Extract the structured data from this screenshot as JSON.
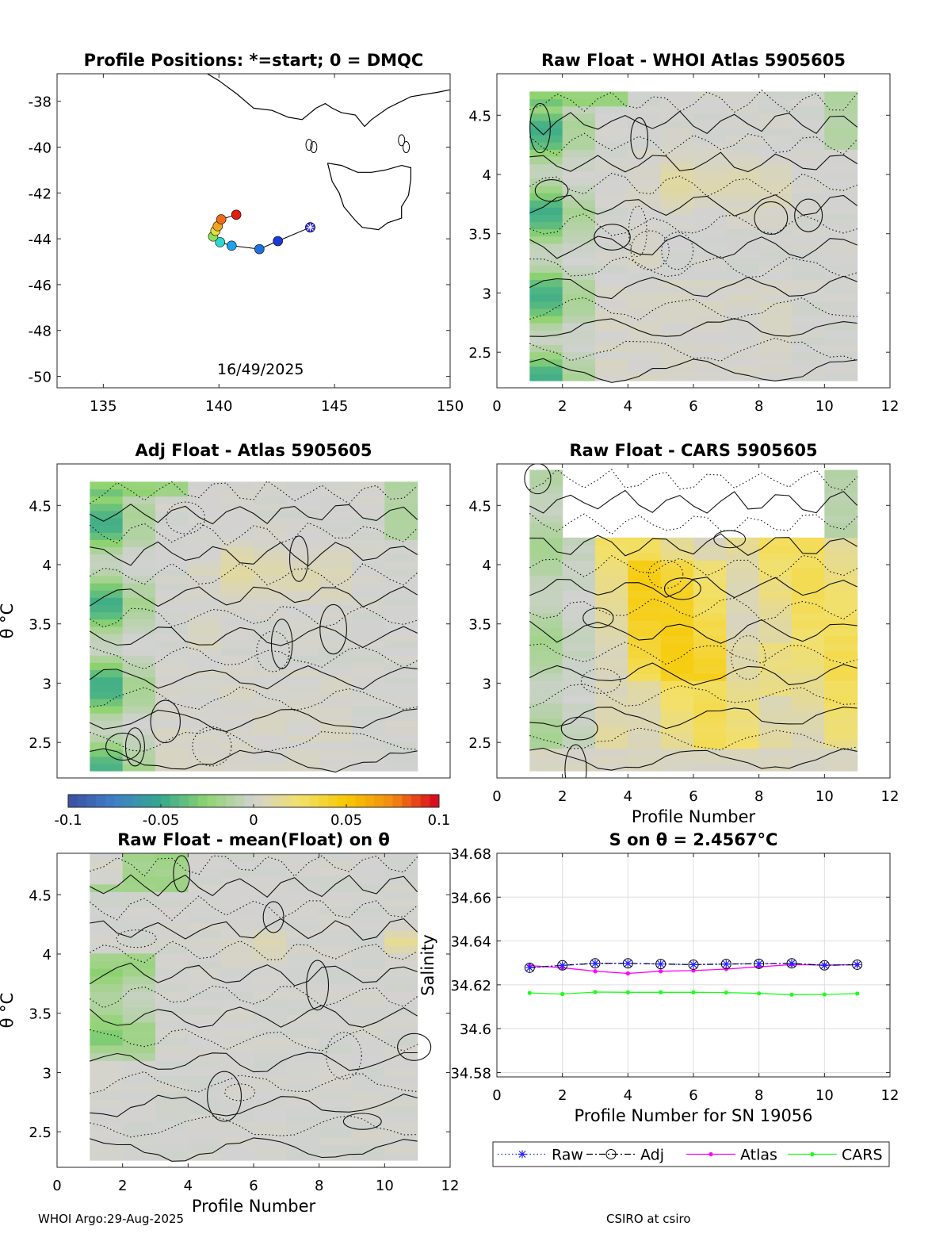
{
  "figure": {
    "footer_left": "WHOI Argo:29-Aug-2025",
    "footer_right": "CSIRO at csiro"
  },
  "colorbar": {
    "min": -0.1,
    "max": 0.1,
    "tick_labels": [
      "-0.1",
      "-0.05",
      "0",
      "0.05",
      "0.1"
    ],
    "colormap": [
      "#3b4fa0",
      "#3f7fc8",
      "#34a88c",
      "#8fd36f",
      "#d2d2d2",
      "#f2e06a",
      "#f7c900",
      "#f38a12",
      "#d6001e"
    ]
  },
  "colors": {
    "raw": "#2323ff",
    "adj": "#000000",
    "atlas": "#ff00ff",
    "cars": "#19ff19",
    "grid": "#dedede",
    "coast": "#000000"
  },
  "chart_data": [
    {
      "type": "map",
      "title": "Profile Positions: *=start; 0 = DMQC",
      "annotation": "16/49/2025",
      "xlim": [
        133,
        150
      ],
      "ylim": [
        -50.5,
        -36.8
      ],
      "xticks": [
        135,
        140,
        145,
        150
      ],
      "xtick_labels": [
        "135",
        "140",
        "145",
        "150"
      ],
      "yticks": [
        -38,
        -40,
        -42,
        -44,
        -46,
        -48,
        -50
      ],
      "ytick_labels": [
        "-38",
        "-40",
        "-42",
        "-44",
        "-46",
        "-48",
        "-50"
      ],
      "track": {
        "lon": [
          143.95,
          142.55,
          141.75,
          140.55,
          140.05,
          139.75,
          139.85,
          139.95,
          140.1,
          140.75
        ],
        "lat": [
          -43.5,
          -44.1,
          -44.45,
          -44.3,
          -44.15,
          -43.9,
          -43.65,
          -43.45,
          -43.15,
          -42.95
        ],
        "colors": [
          "#2d2dff",
          "#1a3ad6",
          "#1f6fe0",
          "#1fa0e8",
          "#2fd6d0",
          "#8ee05a",
          "#e6e035",
          "#f0a521",
          "#f06a16",
          "#e21c10"
        ],
        "start_marker": "*"
      }
    },
    {
      "type": "heatmap",
      "title": "Raw Float - WHOI Atlas  5905605",
      "xlim": [
        0,
        12
      ],
      "ylim": [
        2.2,
        4.85
      ],
      "xticks": [
        0,
        2,
        4,
        6,
        8,
        10,
        12
      ],
      "xtick_labels": [
        "0",
        "2",
        "4",
        "6",
        "8",
        "10",
        "12"
      ],
      "yticks": [
        2.5,
        3,
        3.5,
        4,
        4.5
      ],
      "ytick_labels": [
        "2.5",
        "3",
        "3.5",
        "4",
        "4.5"
      ],
      "xlabel": "",
      "ylabel": "",
      "data_xrange": [
        1,
        11
      ],
      "data_yrange": [
        2.26,
        4.7
      ],
      "pattern": "atlas",
      "levels": 0.01
    },
    {
      "type": "heatmap",
      "title": "Adj Float - Atlas  5905605",
      "xlim": [
        0,
        12
      ],
      "ylim": [
        2.2,
        4.85
      ],
      "xticks": [],
      "xtick_labels": [],
      "yticks": [
        2.5,
        3,
        3.5,
        4,
        4.5
      ],
      "ytick_labels": [
        "2.5",
        "3",
        "3.5",
        "4",
        "4.5"
      ],
      "xlabel": "",
      "ylabel": "θ °C",
      "data_xrange": [
        1,
        11
      ],
      "data_yrange": [
        2.26,
        4.7
      ],
      "pattern": "atlas",
      "levels": 0.01
    },
    {
      "type": "heatmap",
      "title": "Raw Float - CARS  5905605",
      "xlim": [
        0,
        12
      ],
      "ylim": [
        2.2,
        4.85
      ],
      "xticks": [
        0,
        2,
        4,
        6,
        8,
        10,
        12
      ],
      "xtick_labels": [
        "0",
        "2",
        "4",
        "6",
        "8",
        "10",
        "12"
      ],
      "yticks": [
        2.5,
        3,
        3.5,
        4,
        4.5
      ],
      "ytick_labels": [
        "2.5",
        "3",
        "3.5",
        "4",
        "4.5"
      ],
      "xlabel": "Profile Number",
      "ylabel": "",
      "data_xrange": [
        1,
        11
      ],
      "data_yrange": [
        2.26,
        4.8
      ],
      "gap": {
        "x": [
          2,
          10
        ],
        "y_from": 4.25
      },
      "pattern": "cars",
      "levels": 0.01
    },
    {
      "type": "heatmap",
      "title": "Raw Float - mean(Float) on θ",
      "xlim": [
        0,
        12
      ],
      "ylim": [
        2.2,
        4.85
      ],
      "xticks": [
        0,
        2,
        4,
        6,
        8,
        10,
        12
      ],
      "xtick_labels": [
        "0",
        "2",
        "4",
        "6",
        "8",
        "10",
        "12"
      ],
      "yticks": [
        2.5,
        3,
        3.5,
        4,
        4.5
      ],
      "ytick_labels": [
        "2.5",
        "3",
        "3.5",
        "4",
        "4.5"
      ],
      "xlabel": "Profile Number",
      "ylabel": "θ °C",
      "data_xrange": [
        1,
        11
      ],
      "data_yrange": [
        2.26,
        4.85
      ],
      "pattern": "mean",
      "levels": 0.01
    },
    {
      "type": "line",
      "title": "S on θ = 2.4567°C",
      "xlabel": "Profile Number for SN 19056",
      "ylabel": "Salinity",
      "xlim": [
        0,
        12
      ],
      "ylim": [
        34.578,
        34.68
      ],
      "xticks": [
        0,
        2,
        4,
        6,
        8,
        10,
        12
      ],
      "xtick_labels": [
        "0",
        "2",
        "4",
        "6",
        "8",
        "10",
        "12"
      ],
      "yticks": [
        34.58,
        34.6,
        34.62,
        34.64,
        34.66,
        34.68
      ],
      "ytick_labels": [
        "34.58",
        "34.6",
        "34.62",
        "34.64",
        "34.66",
        "34.68"
      ],
      "grid": true,
      "x": [
        1,
        2,
        3,
        4,
        5,
        6,
        7,
        8,
        9,
        10,
        11
      ],
      "series": [
        {
          "name": "Raw",
          "values": [
            34.6278,
            34.6289,
            34.6298,
            34.6298,
            34.6295,
            34.6292,
            34.6295,
            34.6296,
            34.6298,
            34.6289,
            34.6292
          ]
        },
        {
          "name": "Adj",
          "values": [
            34.6278,
            34.6289,
            34.6298,
            34.6298,
            34.6295,
            34.6292,
            34.6295,
            34.6296,
            34.6298,
            34.6289,
            34.6292
          ]
        },
        {
          "name": "Atlas",
          "values": [
            34.6288,
            34.6278,
            34.6262,
            34.6252,
            34.6262,
            34.6265,
            34.6272,
            34.6282,
            34.6292,
            34.629,
            34.6292
          ]
        },
        {
          "name": "CARS",
          "values": [
            34.6163,
            34.6158,
            34.6167,
            34.6166,
            34.6166,
            34.6166,
            34.6165,
            34.6161,
            34.6155,
            34.6156,
            34.616
          ]
        }
      ],
      "legend": [
        "Raw",
        "Adj",
        "Atlas",
        "CARS"
      ],
      "legend_position": "bottom"
    }
  ]
}
